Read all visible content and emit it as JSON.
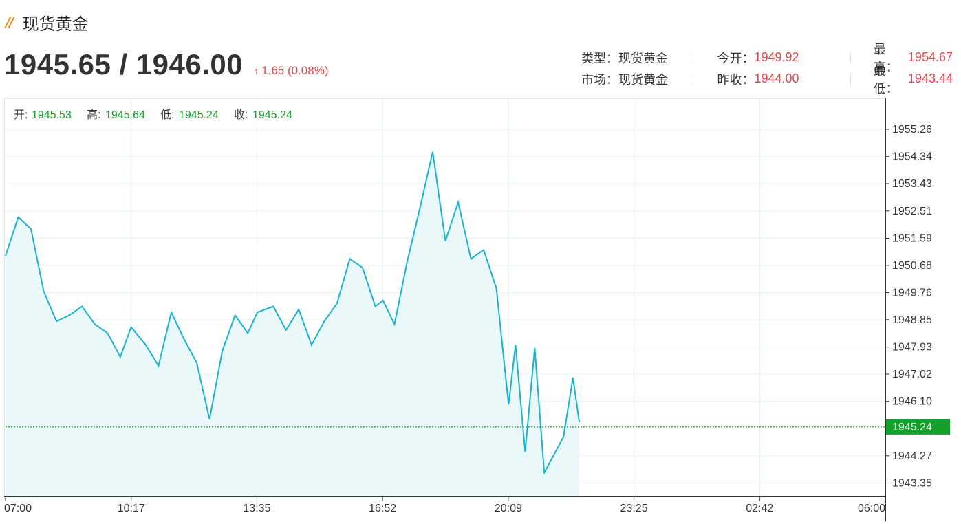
{
  "header": {
    "title": "现货黄金",
    "price": "1945.65 / 1946.00",
    "change_arrow": "↑",
    "change": "1.65 (0.08%)"
  },
  "stats": {
    "type_label": "类型：",
    "type_value": "现货黄金",
    "market_label": "市场：",
    "market_value": "现货黄金",
    "open_label": "今开：",
    "open_value": "1949.92",
    "prev_close_label": "昨收：",
    "prev_close_value": "1944.00",
    "high_label": "最高：",
    "high_value": "1954.67",
    "low_label": "最低：",
    "low_value": "1943.44"
  },
  "ohlc": {
    "open_label": "开:",
    "open_value": "1945.53",
    "high_label": "高:",
    "high_value": "1945.64",
    "low_label": "低:",
    "low_value": "1945.24",
    "close_label": "收:",
    "close_value": "1945.24"
  },
  "colors": {
    "line": "#1ab3cd",
    "area": "#eaf8fa",
    "grid": "#dbeff3",
    "current": "#15a02a",
    "up": "#e5484d"
  },
  "chart_data": {
    "type": "area",
    "x_ticks": [
      "07:00",
      "10:17",
      "13:35",
      "16:52",
      "20:09",
      "23:25",
      "02:42",
      "06:00"
    ],
    "y_ticks": [
      "1955.26",
      "1954.34",
      "1953.43",
      "1952.51",
      "1951.59",
      "1950.68",
      "1949.76",
      "1948.85",
      "1947.93",
      "1947.02",
      "1946.10",
      "1944.27",
      "1943.35"
    ],
    "ylim": [
      1942.9,
      1956.3
    ],
    "current_price": "1945.24",
    "current_value": 1945.24,
    "grid": true,
    "series": [
      {
        "x": [
          "07:00",
          "07:20",
          "07:40",
          "08:00",
          "08:20",
          "08:40",
          "09:00",
          "09:20",
          "09:40",
          "10:00",
          "10:17",
          "10:40",
          "11:00",
          "11:20",
          "11:40",
          "12:00",
          "12:20",
          "12:40",
          "13:00",
          "13:20",
          "13:35",
          "14:00",
          "14:20",
          "14:40",
          "15:00",
          "15:20",
          "15:40",
          "16:00",
          "16:20",
          "16:40",
          "16:52",
          "17:10",
          "17:30",
          "17:50",
          "18:10",
          "18:30",
          "18:50",
          "19:10",
          "19:30",
          "19:50",
          "20:09",
          "20:20",
          "20:35",
          "20:50",
          "21:05",
          "21:20",
          "21:35",
          "21:50",
          "22:00"
        ],
        "values": [
          1951.0,
          1952.3,
          1951.9,
          1949.8,
          1948.8,
          1949.0,
          1949.3,
          1948.7,
          1948.4,
          1947.6,
          1948.6,
          1948.0,
          1947.3,
          1949.1,
          1948.2,
          1947.4,
          1945.5,
          1947.8,
          1949.0,
          1948.4,
          1949.1,
          1949.3,
          1948.5,
          1949.2,
          1948.0,
          1948.8,
          1949.4,
          1950.9,
          1950.6,
          1949.3,
          1949.5,
          1948.7,
          1950.8,
          1952.6,
          1954.5,
          1951.5,
          1952.8,
          1950.9,
          1951.2,
          1949.9,
          1946.0,
          1948.0,
          1944.4,
          1947.9,
          1943.7,
          1944.3,
          1944.9,
          1946.9,
          1945.4
        ]
      }
    ]
  }
}
